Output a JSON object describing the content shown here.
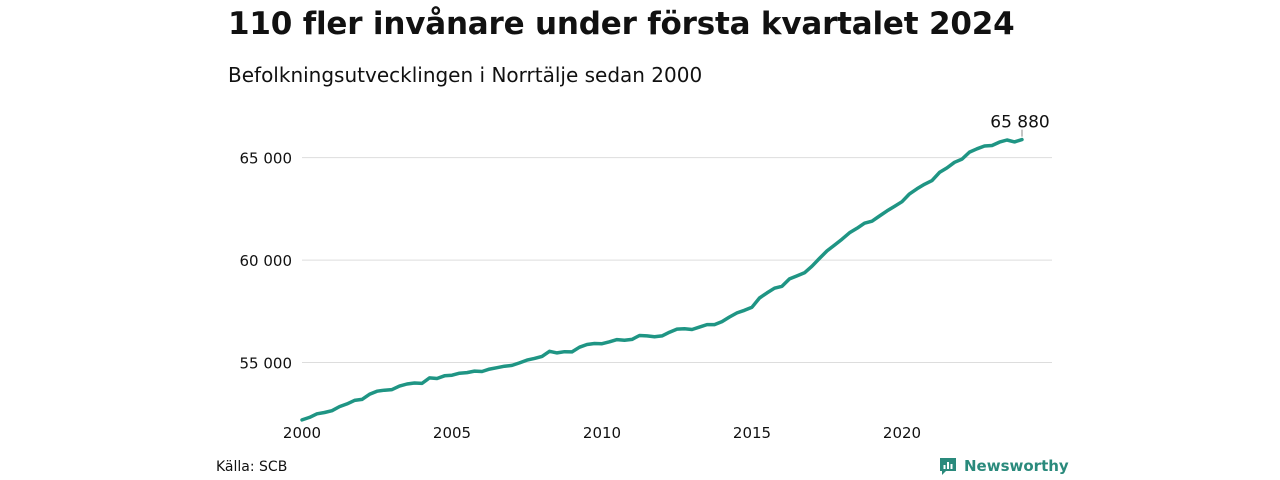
{
  "title": "110 fler invånare under första kvartalet 2024",
  "subtitle": "Befolkningsutvecklingen i Norrtälje sedan 2000",
  "source": "Källa: SCB",
  "brand": "Newsworthy",
  "colors": {
    "line": "#1f9584",
    "grid": "#dddddd",
    "brand": "#2a8a7c"
  },
  "chart_data": {
    "type": "line",
    "xlabel": "",
    "ylabel": "",
    "xlim": [
      2000,
      2025
    ],
    "ylim": [
      52000,
      66300
    ],
    "x_ticks": [
      2000,
      2005,
      2010,
      2015,
      2020
    ],
    "y_ticks": [
      55000,
      60000,
      65000
    ],
    "y_tick_labels": [
      "55 000",
      "60 000",
      "65 000"
    ],
    "grid": true,
    "end_label": "65 880",
    "series": [
      {
        "values": [
          [
            2000.0,
            52200
          ],
          [
            2000.25,
            52320
          ],
          [
            2000.5,
            52500
          ],
          [
            2000.75,
            52560
          ],
          [
            2001.0,
            52650
          ],
          [
            2001.25,
            52850
          ],
          [
            2001.5,
            52980
          ],
          [
            2001.75,
            53150
          ],
          [
            2002.0,
            53200
          ],
          [
            2002.25,
            53450
          ],
          [
            2002.5,
            53600
          ],
          [
            2002.75,
            53650
          ],
          [
            2003.0,
            53680
          ],
          [
            2003.25,
            53850
          ],
          [
            2003.5,
            53950
          ],
          [
            2003.75,
            54000
          ],
          [
            2004.0,
            53980
          ],
          [
            2004.25,
            54250
          ],
          [
            2004.5,
            54220
          ],
          [
            2004.75,
            54350
          ],
          [
            2005.0,
            54380
          ],
          [
            2005.25,
            54480
          ],
          [
            2005.5,
            54510
          ],
          [
            2005.75,
            54580
          ],
          [
            2006.0,
            54560
          ],
          [
            2006.25,
            54680
          ],
          [
            2006.5,
            54750
          ],
          [
            2006.75,
            54820
          ],
          [
            2007.0,
            54860
          ],
          [
            2007.25,
            54980
          ],
          [
            2007.5,
            55120
          ],
          [
            2007.75,
            55200
          ],
          [
            2008.0,
            55300
          ],
          [
            2008.25,
            55550
          ],
          [
            2008.5,
            55470
          ],
          [
            2008.75,
            55530
          ],
          [
            2009.0,
            55520
          ],
          [
            2009.25,
            55750
          ],
          [
            2009.5,
            55880
          ],
          [
            2009.75,
            55930
          ],
          [
            2010.0,
            55920
          ],
          [
            2010.25,
            56010
          ],
          [
            2010.5,
            56120
          ],
          [
            2010.75,
            56090
          ],
          [
            2011.0,
            56130
          ],
          [
            2011.25,
            56320
          ],
          [
            2011.5,
            56300
          ],
          [
            2011.75,
            56260
          ],
          [
            2012.0,
            56300
          ],
          [
            2012.25,
            56480
          ],
          [
            2012.5,
            56630
          ],
          [
            2012.75,
            56650
          ],
          [
            2013.0,
            56610
          ],
          [
            2013.25,
            56730
          ],
          [
            2013.5,
            56850
          ],
          [
            2013.75,
            56850
          ],
          [
            2014.0,
            57000
          ],
          [
            2014.25,
            57220
          ],
          [
            2014.5,
            57420
          ],
          [
            2014.75,
            57550
          ],
          [
            2015.0,
            57700
          ],
          [
            2015.25,
            58150
          ],
          [
            2015.5,
            58400
          ],
          [
            2015.75,
            58630
          ],
          [
            2016.0,
            58720
          ],
          [
            2016.25,
            59080
          ],
          [
            2016.5,
            59230
          ],
          [
            2016.75,
            59380
          ],
          [
            2017.0,
            59700
          ],
          [
            2017.25,
            60080
          ],
          [
            2017.5,
            60450
          ],
          [
            2017.75,
            60730
          ],
          [
            2018.0,
            61020
          ],
          [
            2018.25,
            61330
          ],
          [
            2018.5,
            61550
          ],
          [
            2018.75,
            61800
          ],
          [
            2019.0,
            61900
          ],
          [
            2019.25,
            62150
          ],
          [
            2019.5,
            62400
          ],
          [
            2019.75,
            62620
          ],
          [
            2020.0,
            62850
          ],
          [
            2020.25,
            63230
          ],
          [
            2020.5,
            63480
          ],
          [
            2020.75,
            63700
          ],
          [
            2021.0,
            63880
          ],
          [
            2021.25,
            64280
          ],
          [
            2021.5,
            64500
          ],
          [
            2021.75,
            64770
          ],
          [
            2022.0,
            64930
          ],
          [
            2022.25,
            65270
          ],
          [
            2022.5,
            65430
          ],
          [
            2022.75,
            65570
          ],
          [
            2023.0,
            65590
          ],
          [
            2023.25,
            65760
          ],
          [
            2023.5,
            65860
          ],
          [
            2023.75,
            65770
          ],
          [
            2024.0,
            65880
          ]
        ]
      }
    ]
  }
}
